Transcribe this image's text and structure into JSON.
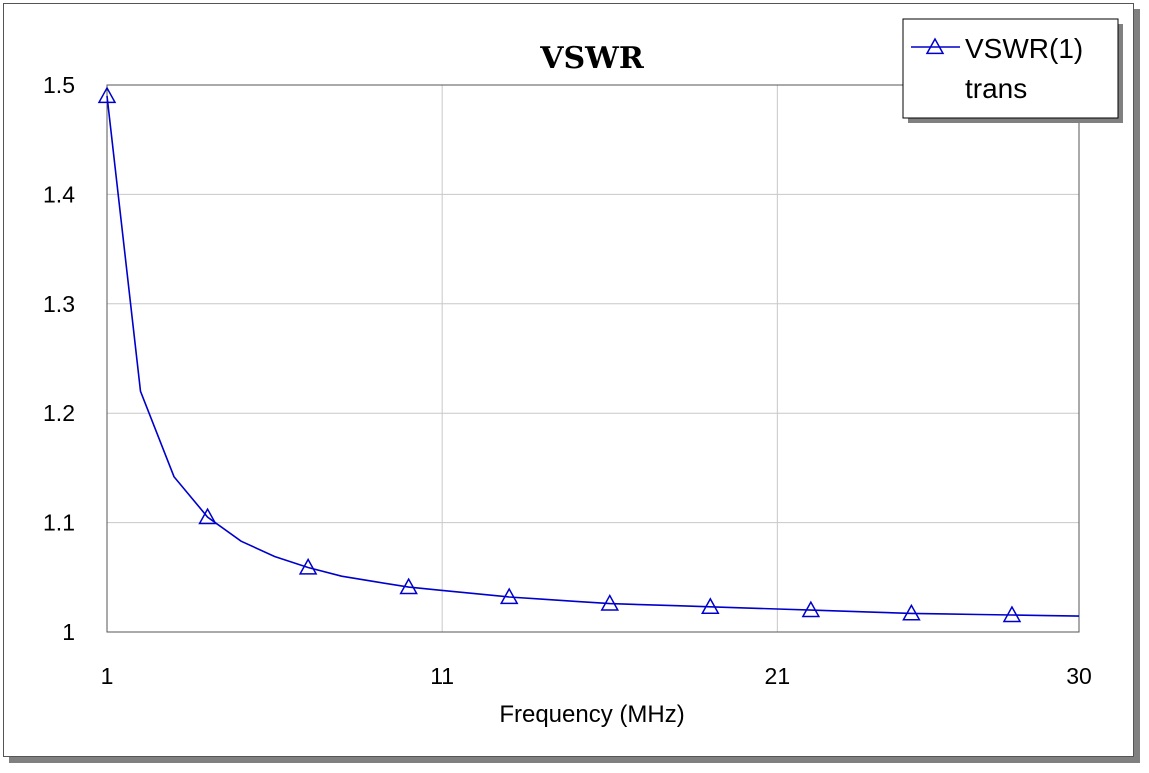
{
  "chart_data": {
    "type": "line",
    "title": "VSWR",
    "xlabel": "Frequency (MHz)",
    "ylabel": "",
    "xlim": [
      1,
      30
    ],
    "ylim": [
      1,
      1.5
    ],
    "xticks": [
      1,
      11,
      21,
      30
    ],
    "xtick_labels": [
      "1",
      "11",
      "21",
      "30"
    ],
    "yticks": [
      1.0,
      1.1,
      1.2,
      1.3,
      1.4,
      1.5
    ],
    "ytick_labels": [
      "1",
      "1.1",
      "1.2",
      "1.3",
      "1.4",
      "1.5"
    ],
    "grid": true,
    "legend_position": "top-right",
    "series": [
      {
        "name": "VSWR(1)",
        "legend_sublabel": "trans",
        "color": "#0000cc",
        "marker": "triangle",
        "x": [
          1,
          2,
          3,
          4,
          5,
          6,
          7,
          8,
          9,
          10,
          11,
          12,
          13,
          14,
          15,
          16,
          17,
          18,
          19,
          20,
          21,
          22,
          23,
          24,
          25,
          26,
          27,
          28,
          29,
          30
        ],
        "values": [
          1.49,
          1.22,
          1.142,
          1.105,
          1.083,
          1.069,
          1.059,
          1.051,
          1.046,
          1.041,
          1.038,
          1.035,
          1.032,
          1.03,
          1.028,
          1.026,
          1.025,
          1.024,
          1.023,
          1.022,
          1.021,
          1.02,
          1.019,
          1.018,
          1.017,
          1.0165,
          1.016,
          1.0155,
          1.015,
          1.0145
        ],
        "marker_x": [
          1,
          4,
          7,
          10,
          13,
          16,
          19,
          22,
          25,
          28
        ]
      }
    ]
  }
}
